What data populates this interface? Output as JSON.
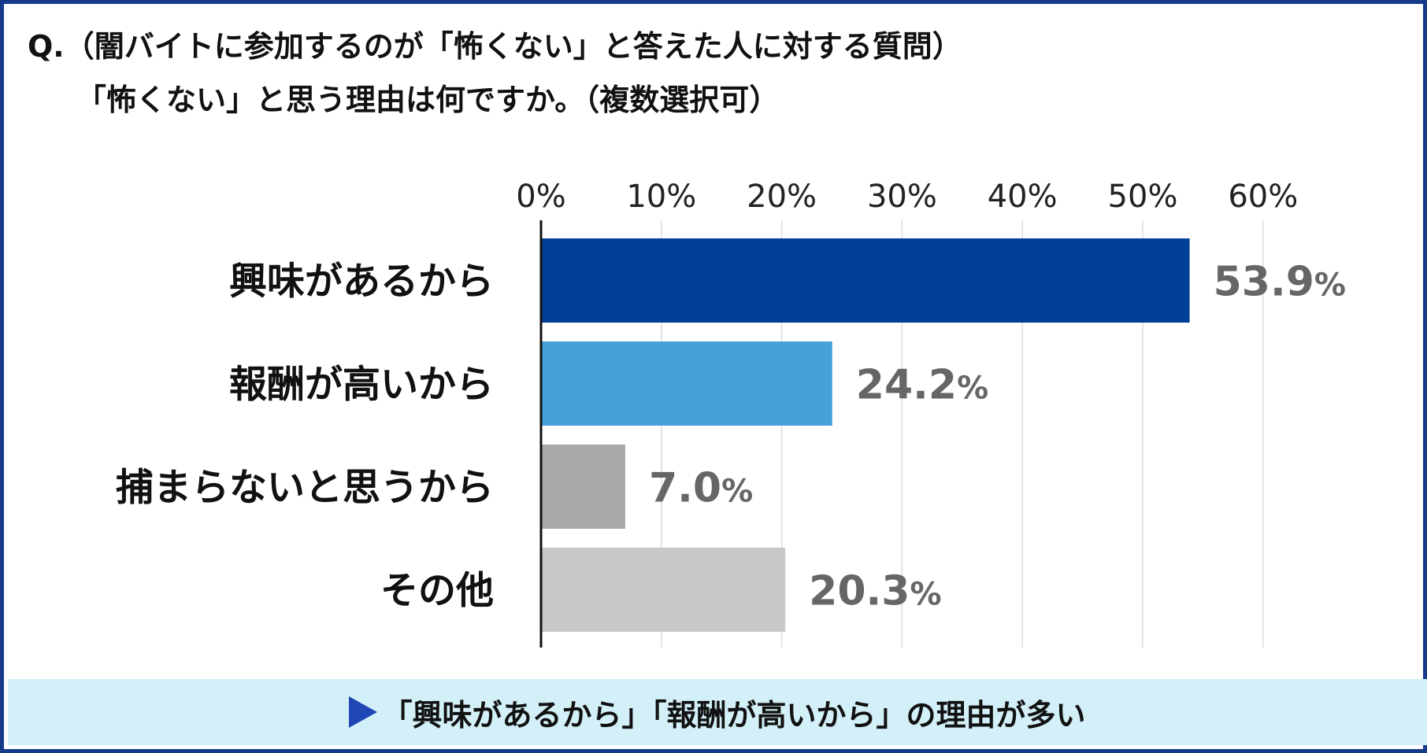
{
  "question": {
    "line1": "Q.（闇バイトに参加するのが「怖くない」と答えた人に対する質問）",
    "line2": "「怖くない」と思う理由は何ですか。（複数選択可）"
  },
  "chart_data": {
    "type": "bar",
    "orientation": "horizontal",
    "categories": [
      "興味があるから",
      "報酬が高いから",
      "捕まらないと思うから",
      "その他"
    ],
    "values": [
      53.9,
      24.2,
      7.0,
      20.3
    ],
    "value_labels": [
      "53.9",
      "24.2",
      "7.0",
      "20.3"
    ],
    "value_unit": "%",
    "bar_colors": [
      "#003f98",
      "#46a1d8",
      "#a9a9a9",
      "#c8c8c8"
    ],
    "xlim": [
      0,
      60
    ],
    "ticks": [
      0,
      10,
      20,
      30,
      40,
      50,
      60
    ],
    "tick_labels": [
      "0%",
      "10%",
      "20%",
      "30%",
      "40%",
      "50%",
      "60%"
    ],
    "axis_position": "top",
    "grid": true
  },
  "footer": {
    "text": "「興味があるから」「報酬が高いから」の理由が多い",
    "accent": "#1e46b4",
    "background": "#d3f0f8"
  }
}
